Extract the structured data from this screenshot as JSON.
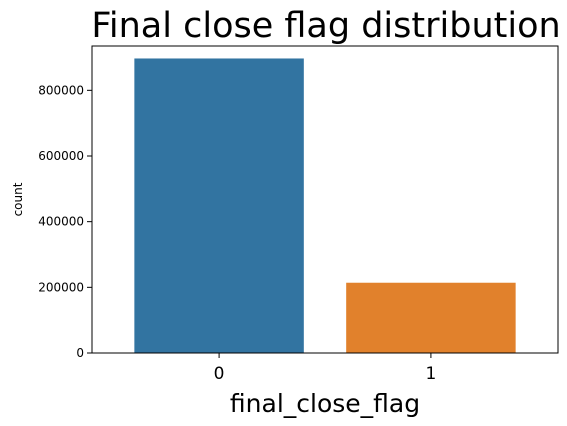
{
  "chart_data": {
    "type": "bar",
    "title": "Final close flag distribution",
    "xlabel": "final_close_flag",
    "ylabel": "count",
    "categories": [
      "0",
      "1"
    ],
    "values": [
      897000,
      214000
    ],
    "colors": [
      "#3274a1",
      "#e1812c"
    ],
    "ylim": [
      0,
      935000
    ],
    "yticks": [
      0,
      200000,
      400000,
      600000,
      800000
    ],
    "ytick_labels": [
      "0",
      "200000",
      "400000",
      "600000",
      "800000"
    ],
    "grid": false,
    "legend": "none"
  }
}
